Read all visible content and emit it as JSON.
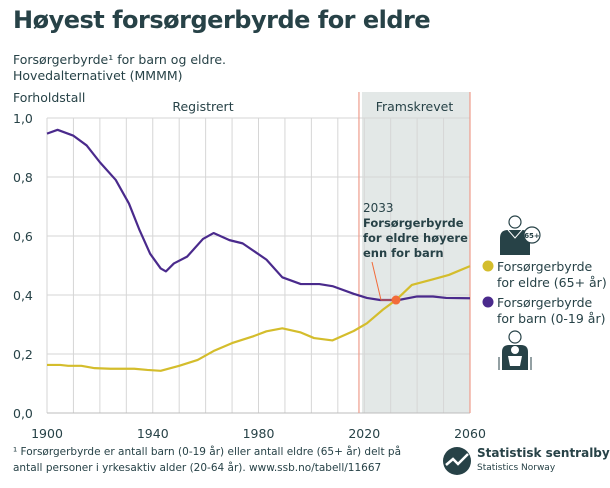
{
  "title": "Høyest forsørgerbyrde for eldre",
  "subtitle": [
    "Forsørgerbyrde¹ for barn og eldre.",
    "Hovedalternativet (MMMM)"
  ],
  "footnote": [
    "¹ Forsørgerbyrde er antall barn (0-19 år) eller antall eldre (65+ år) delt på",
    "antall personer i yrkesaktiv alder (20-64 år). www.ssb.no/tabell/11667"
  ],
  "logo": {
    "name": "Statistisk sentralbyrå",
    "english": "Statistics Norway"
  },
  "chart_data": {
    "type": "line",
    "ylabel": "Forholdstall",
    "xlim": [
      1900,
      2060
    ],
    "ylim": [
      0,
      1.0
    ],
    "xticks": [
      "1900",
      "1940",
      "1980",
      "2020",
      "2060"
    ],
    "yticks": [
      "0,0",
      "0,2",
      "0,4",
      "0,6",
      "0,8",
      "1,0"
    ],
    "grid": true,
    "legend_placement": "right",
    "regions": [
      {
        "label": "Registrert",
        "from": 1900,
        "to": 2018
      },
      {
        "label": "Framskrevet",
        "from": 2018,
        "to": 2060,
        "shaded": true
      }
    ],
    "annotation": {
      "year": "2033",
      "text": [
        "Forsørgerbyrde",
        "for eldre høyere",
        "enn for barn"
      ],
      "x": 2032,
      "y": 0.383
    },
    "series": [
      {
        "name": "Forsørgerbyrde for eldre (65+ år)",
        "label_lines": [
          "Forsørgerbyrde",
          "for eldre (65+ år)"
        ],
        "color": "#d4bd2c",
        "icon": "elderly-person-icon",
        "x": [
          1900,
          1905,
          1908,
          1913,
          1918,
          1924,
          1933,
          1938,
          1943,
          1950,
          1957,
          1963,
          1970,
          1978,
          1983,
          1989,
          1996,
          2001,
          2008,
          2016,
          2021,
          2027,
          2032,
          2038,
          2046,
          2052,
          2060
        ],
        "y": [
          0.163,
          0.163,
          0.16,
          0.16,
          0.152,
          0.15,
          0.15,
          0.146,
          0.143,
          0.16,
          0.18,
          0.21,
          0.237,
          0.26,
          0.277,
          0.287,
          0.273,
          0.254,
          0.246,
          0.278,
          0.304,
          0.35,
          0.383,
          0.434,
          0.453,
          0.468,
          0.498
        ]
      },
      {
        "name": "Forsørgerbyrde for barn (0-19 år)",
        "label_lines": [
          "Forsørgerbyrde",
          "for barn (0-19 år)"
        ],
        "color": "#4a2a8c",
        "icon": "parent-with-child-icon",
        "x": [
          1900,
          1904,
          1910,
          1915,
          1920,
          1926,
          1931,
          1935,
          1939,
          1943,
          1945,
          1948,
          1953,
          1959,
          1963,
          1969,
          1974,
          1983,
          1989,
          1996,
          2003,
          2008,
          2016,
          2021,
          2026,
          2033,
          2040,
          2046,
          2051,
          2060
        ],
        "y": [
          0.947,
          0.96,
          0.94,
          0.907,
          0.85,
          0.79,
          0.71,
          0.62,
          0.54,
          0.49,
          0.48,
          0.507,
          0.53,
          0.59,
          0.61,
          0.586,
          0.575,
          0.52,
          0.46,
          0.437,
          0.437,
          0.43,
          0.404,
          0.39,
          0.383,
          0.383,
          0.395,
          0.395,
          0.39,
          0.389
        ]
      }
    ]
  }
}
